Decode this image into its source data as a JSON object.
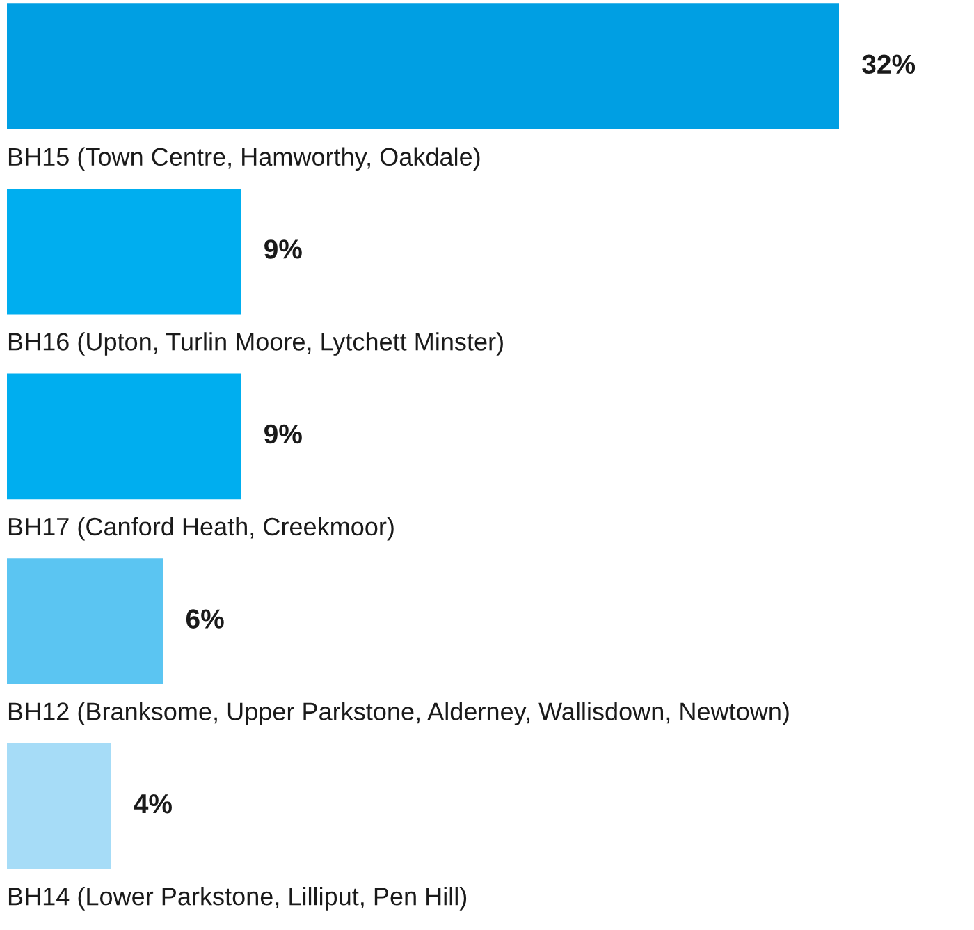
{
  "chart_data": {
    "type": "bar",
    "orientation": "horizontal",
    "categories": [
      "BH15 (Town Centre, Hamworthy, Oakdale)",
      "BH16 (Upton, Turlin Moore, Lytchett Minster)",
      "BH17 (Canford Heath, Creekmoor)",
      "BH12 (Branksome, Upper Parkstone, Alderney, Wallisdown, Newtown)",
      "BH14 (Lower Parkstone, Lilliput, Pen Hill)"
    ],
    "values": [
      32,
      9,
      9,
      6,
      4
    ],
    "colors": [
      "#009fe3",
      "#00aeef",
      "#00aeef",
      "#5bc5f2",
      "#a6dcf7"
    ],
    "value_labels": [
      "32%",
      "9%",
      "9%",
      "6%",
      "4%"
    ]
  }
}
